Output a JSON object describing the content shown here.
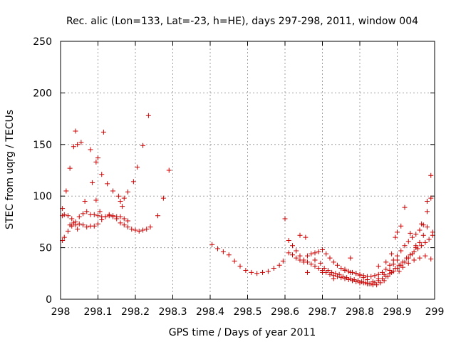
{
  "chart_data": {
    "type": "scatter",
    "title": "Rec. alic (Lon=133, Lat=-23, h=HE), days 297-298, 2011, window 004",
    "xlabel": "GPS time / Days of year 2011",
    "ylabel": "STEC from uqrg / TECUs",
    "xlim": [
      298,
      299
    ],
    "ylim": [
      0,
      250
    ],
    "xticks": [
      "298",
      "298.1",
      "298.2",
      "298.3",
      "298.4",
      "298.5",
      "298.6",
      "298.7",
      "298.8",
      "298.9",
      "299"
    ],
    "yticks": [
      "0",
      "50",
      "100",
      "150",
      "200",
      "250"
    ],
    "grid": true,
    "legend": "none",
    "marker_color": "#cc0000",
    "series": [
      {
        "marker": "plus",
        "x": [
          298.005,
          298.01,
          298.02,
          298.03,
          298.04,
          298.05,
          298.06,
          298.07,
          298.08,
          298.09,
          298.1,
          298.11,
          298.12,
          298.13,
          298.14,
          298.15,
          298.16,
          298.17,
          298.18,
          298.19,
          298.2,
          298.21,
          298.22,
          298.23,
          298.24,
          298.005,
          298.01,
          298.02,
          298.03,
          298.04,
          298.05,
          298.06,
          298.07,
          298.08,
          298.09,
          298.1,
          298.11,
          298.12,
          298.13,
          298.14,
          298.15,
          298.16,
          298.17,
          298.18,
          298.005,
          298.015,
          298.025,
          298.035,
          298.04,
          298.045,
          298.055,
          298.065,
          298.08,
          298.085,
          298.095,
          298.1,
          298.11,
          298.115,
          298.125,
          298.14,
          298.155,
          298.165,
          298.18,
          298.195,
          298.205,
          298.22,
          298.235,
          298.26,
          298.275,
          298.29,
          298.025,
          298.035,
          298.045,
          298.095,
          298.105,
          298.16,
          298.17
        ],
        "y": [
          57,
          60,
          66,
          71,
          72,
          73,
          72,
          70,
          71,
          71,
          73,
          77,
          80,
          82,
          80,
          78,
          74,
          72,
          70,
          68,
          67,
          66,
          67,
          68,
          70,
          81,
          82,
          81,
          78,
          75,
          80,
          83,
          85,
          82,
          82,
          81,
          80,
          80,
          81,
          81,
          80,
          80,
          78,
          76,
          88,
          105,
          127,
          148,
          163,
          150,
          152,
          95,
          145,
          113,
          133,
          137,
          121,
          162,
          112,
          105,
          100,
          90,
          104,
          114,
          128,
          149,
          178,
          81,
          98,
          125,
          72,
          74,
          68,
          96,
          85,
          95,
          98
        ]
      },
      {
        "marker": "plus",
        "x": [
          298.405,
          298.42,
          298.435,
          298.45,
          298.465,
          298.48,
          298.495,
          298.51,
          298.525,
          298.54,
          298.555,
          298.57,
          298.585,
          298.595,
          298.6,
          298.61,
          298.62,
          298.63,
          298.64,
          298.65,
          298.66,
          298.67,
          298.68,
          298.69,
          298.7,
          298.71,
          298.72,
          298.73,
          298.74,
          298.75,
          298.76,
          298.77,
          298.78,
          298.79,
          298.8,
          298.81,
          298.82,
          298.83,
          298.84,
          298.85,
          298.86,
          298.87,
          298.88,
          298.89,
          298.9,
          298.91,
          298.92,
          298.93,
          298.94,
          298.95,
          298.96,
          298.97,
          298.98,
          298.99,
          298.61,
          298.62,
          298.63,
          298.64,
          298.65,
          298.66,
          298.67,
          298.68,
          298.69,
          298.7,
          298.71,
          298.72,
          298.73,
          298.74,
          298.75,
          298.76,
          298.77,
          298.78,
          298.79,
          298.8,
          298.81,
          298.82,
          298.83,
          298.84,
          298.85,
          298.86,
          298.87,
          298.88,
          298.89,
          298.9,
          298.91,
          298.92,
          298.93,
          298.94,
          298.95,
          298.96,
          298.97,
          298.98,
          298.99,
          298.64,
          298.655,
          298.68,
          298.695,
          298.705,
          298.715,
          298.725,
          298.735,
          298.745,
          298.755,
          298.765,
          298.775,
          298.785,
          298.795,
          298.805,
          298.815,
          298.825,
          298.835,
          298.845,
          298.855,
          298.865,
          298.875,
          298.885,
          298.895,
          298.905,
          298.915,
          298.925,
          298.935,
          298.945,
          298.955,
          298.965,
          298.975,
          298.985,
          298.995,
          298.66,
          298.7,
          298.73,
          298.76,
          298.775,
          298.79,
          298.8,
          298.81,
          298.82,
          298.835,
          298.85,
          298.865,
          298.88,
          298.89,
          298.9,
          298.905,
          298.915,
          298.93,
          298.945,
          298.96,
          298.975,
          298.99,
          298.775,
          298.85,
          298.87,
          298.885,
          298.895,
          298.9,
          298.91,
          298.92,
          298.935,
          298.95,
          298.965,
          298.98,
          298.995
        ],
        "y": [
          53,
          49,
          46,
          43,
          37,
          32,
          28,
          26,
          25,
          26,
          27,
          30,
          33,
          37,
          78,
          57,
          52,
          47,
          42,
          38,
          36,
          34,
          32,
          30,
          28,
          26,
          24,
          23,
          22,
          21,
          20,
          19,
          18,
          17,
          16,
          16,
          15,
          15,
          16,
          18,
          20,
          22,
          25,
          27,
          30,
          33,
          36,
          40,
          44,
          50,
          55,
          62,
          85,
          120,
          45,
          43,
          40,
          38,
          36,
          42,
          44,
          45,
          46,
          48,
          44,
          40,
          36,
          33,
          30,
          28,
          27,
          26,
          25,
          24,
          23,
          22,
          22,
          23,
          24,
          26,
          29,
          33,
          38,
          42,
          47,
          52,
          56,
          60,
          63,
          67,
          72,
          95,
          98,
          62,
          60,
          38,
          35,
          30,
          28,
          26,
          25,
          24,
          22,
          21,
          20,
          19,
          18,
          17,
          16,
          15,
          14,
          14,
          16,
          18,
          22,
          26,
          30,
          33,
          36,
          40,
          43,
          46,
          49,
          52,
          55,
          58,
          62,
          26,
          26,
          20,
          29,
          26,
          25,
          23,
          21,
          19,
          17,
          20,
          24,
          28,
          34,
          38,
          27,
          31,
          35,
          38,
          40,
          42,
          39,
          40,
          32,
          36,
          44,
          60,
          65,
          71,
          89,
          64,
          52,
          73,
          70,
          65
        ]
      }
    ]
  }
}
